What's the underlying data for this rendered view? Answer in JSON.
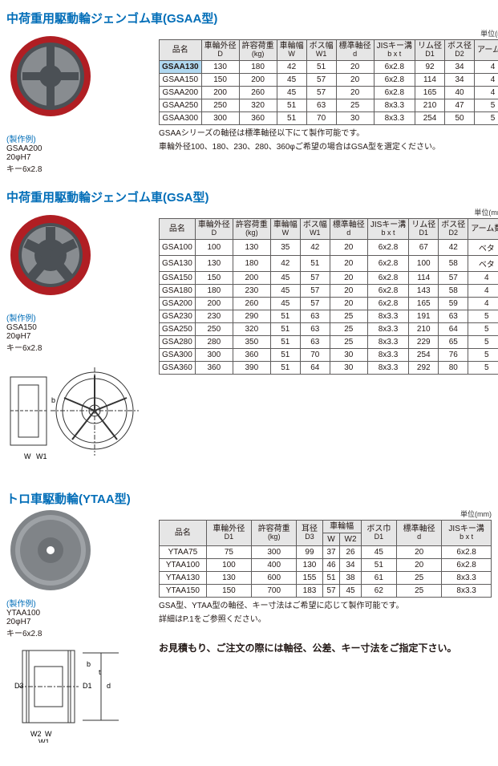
{
  "unit_label": "単位(mm)",
  "gsaa": {
    "title": "中荷重用駆動輪ジェンゴム車(GSAA型)",
    "caption_label": "(製作例)",
    "example_name": "GSAA200",
    "example_bore": "20φH7",
    "example_key": "キー6x2.8",
    "headers": [
      "品名",
      "車輪外径<br>D",
      "許容荷重<br>(kg)",
      "車輪幅<br>W",
      "ボス幅<br>W1",
      "標準軸径<br>d",
      "JISキー溝<br>b x t",
      "リム径<br>D1",
      "ボス径<br>D2",
      "アーム数"
    ],
    "rows": [
      [
        "GSAA130",
        "130",
        "180",
        "42",
        "51",
        "20",
        "6x2.8",
        "92",
        "34",
        "4"
      ],
      [
        "GSAA150",
        "150",
        "200",
        "45",
        "57",
        "20",
        "6x2.8",
        "114",
        "34",
        "4"
      ],
      [
        "GSAA200",
        "200",
        "260",
        "45",
        "57",
        "20",
        "6x2.8",
        "165",
        "40",
        "4"
      ],
      [
        "GSAA250",
        "250",
        "320",
        "51",
        "63",
        "25",
        "8x3.3",
        "210",
        "47",
        "5"
      ],
      [
        "GSAA300",
        "300",
        "360",
        "51",
        "70",
        "30",
        "8x3.3",
        "254",
        "50",
        "5"
      ]
    ],
    "note1": "GSAAシリーズの軸径は標準軸径以下にて製作可能です。",
    "note2": "車輪外径100、180、230、280、360φご希望の場合はGSA型を選定ください。"
  },
  "gsa": {
    "title": "中荷重用駆動輪ジェンゴム車(GSA型)",
    "caption_label": "(製作例)",
    "example_name": "GSA150",
    "example_bore": "20φH7",
    "example_key": "キー6x2.8",
    "headers": [
      "品名",
      "車輪外径<br>D",
      "許容荷重<br>(kg)",
      "車輪幅<br>W",
      "ボス幅<br>W1",
      "標準軸径<br>d",
      "JISキー溝<br>b x t",
      "リム径<br>D1",
      "ボス径<br>D2",
      "アーム数"
    ],
    "rows": [
      [
        "GSA100",
        "100",
        "130",
        "35",
        "42",
        "20",
        "6x2.8",
        "67",
        "42",
        "ベタ"
      ],
      [
        "GSA130",
        "130",
        "180",
        "42",
        "51",
        "20",
        "6x2.8",
        "100",
        "58",
        "ベタ"
      ],
      [
        "GSA150",
        "150",
        "200",
        "45",
        "57",
        "20",
        "6x2.8",
        "114",
        "57",
        "4"
      ],
      [
        "GSA180",
        "180",
        "230",
        "45",
        "57",
        "20",
        "6x2.8",
        "143",
        "58",
        "4"
      ],
      [
        "GSA200",
        "200",
        "260",
        "45",
        "57",
        "20",
        "6x2.8",
        "165",
        "59",
        "4"
      ],
      [
        "GSA230",
        "230",
        "290",
        "51",
        "63",
        "25",
        "8x3.3",
        "191",
        "63",
        "5"
      ],
      [
        "GSA250",
        "250",
        "320",
        "51",
        "63",
        "25",
        "8x3.3",
        "210",
        "64",
        "5"
      ],
      [
        "GSA280",
        "280",
        "350",
        "51",
        "63",
        "25",
        "8x3.3",
        "229",
        "65",
        "5"
      ],
      [
        "GSA300",
        "300",
        "360",
        "51",
        "70",
        "30",
        "8x3.3",
        "254",
        "76",
        "5"
      ],
      [
        "GSA360",
        "360",
        "390",
        "51",
        "64",
        "30",
        "8x3.3",
        "292",
        "80",
        "5"
      ]
    ]
  },
  "ytaa": {
    "title": "トロ車駆動輪(YTAA型)",
    "caption_label": "(製作例)",
    "example_name": "YTAA100",
    "example_bore": "20φH7",
    "example_key": "キー6x2.8",
    "headers": [
      "品名",
      "車輪外径<br>D1",
      "許容荷重<br>(kg)",
      "耳径<br>D3",
      "車輪幅<br>W|W2",
      "ボス巾<br>D1",
      "標準軸径<br>d",
      "JISキー溝<br>b x t"
    ],
    "header_groups": [
      "品名",
      "車輪外径",
      "許容荷重",
      "耳径",
      "車輪幅",
      "車輪幅",
      "ボス巾",
      "標準軸径",
      "JISキー溝"
    ],
    "header_subs": [
      "",
      "D1",
      "(kg)",
      "D3",
      "W",
      "W2",
      "D1",
      "d",
      "b x t"
    ],
    "rows": [
      [
        "YTAA75",
        "75",
        "300",
        "99",
        "37",
        "26",
        "45",
        "20",
        "6x2.8"
      ],
      [
        "YTAA100",
        "100",
        "400",
        "130",
        "46",
        "34",
        "51",
        "20",
        "6x2.8"
      ],
      [
        "YTAA130",
        "130",
        "600",
        "155",
        "51",
        "38",
        "61",
        "25",
        "8x3.3"
      ],
      [
        "YTAA150",
        "150",
        "700",
        "183",
        "57",
        "45",
        "62",
        "25",
        "8x3.3"
      ]
    ],
    "note1": "GSA型、YTAA型の軸径、キー寸法はご希望に応じて製作可能です。",
    "note2": "詳細はP.1をご参照ください。",
    "bignote": "お見積もり、ご注文の際には軸径、公差、キー寸法をご指定下さい。"
  }
}
